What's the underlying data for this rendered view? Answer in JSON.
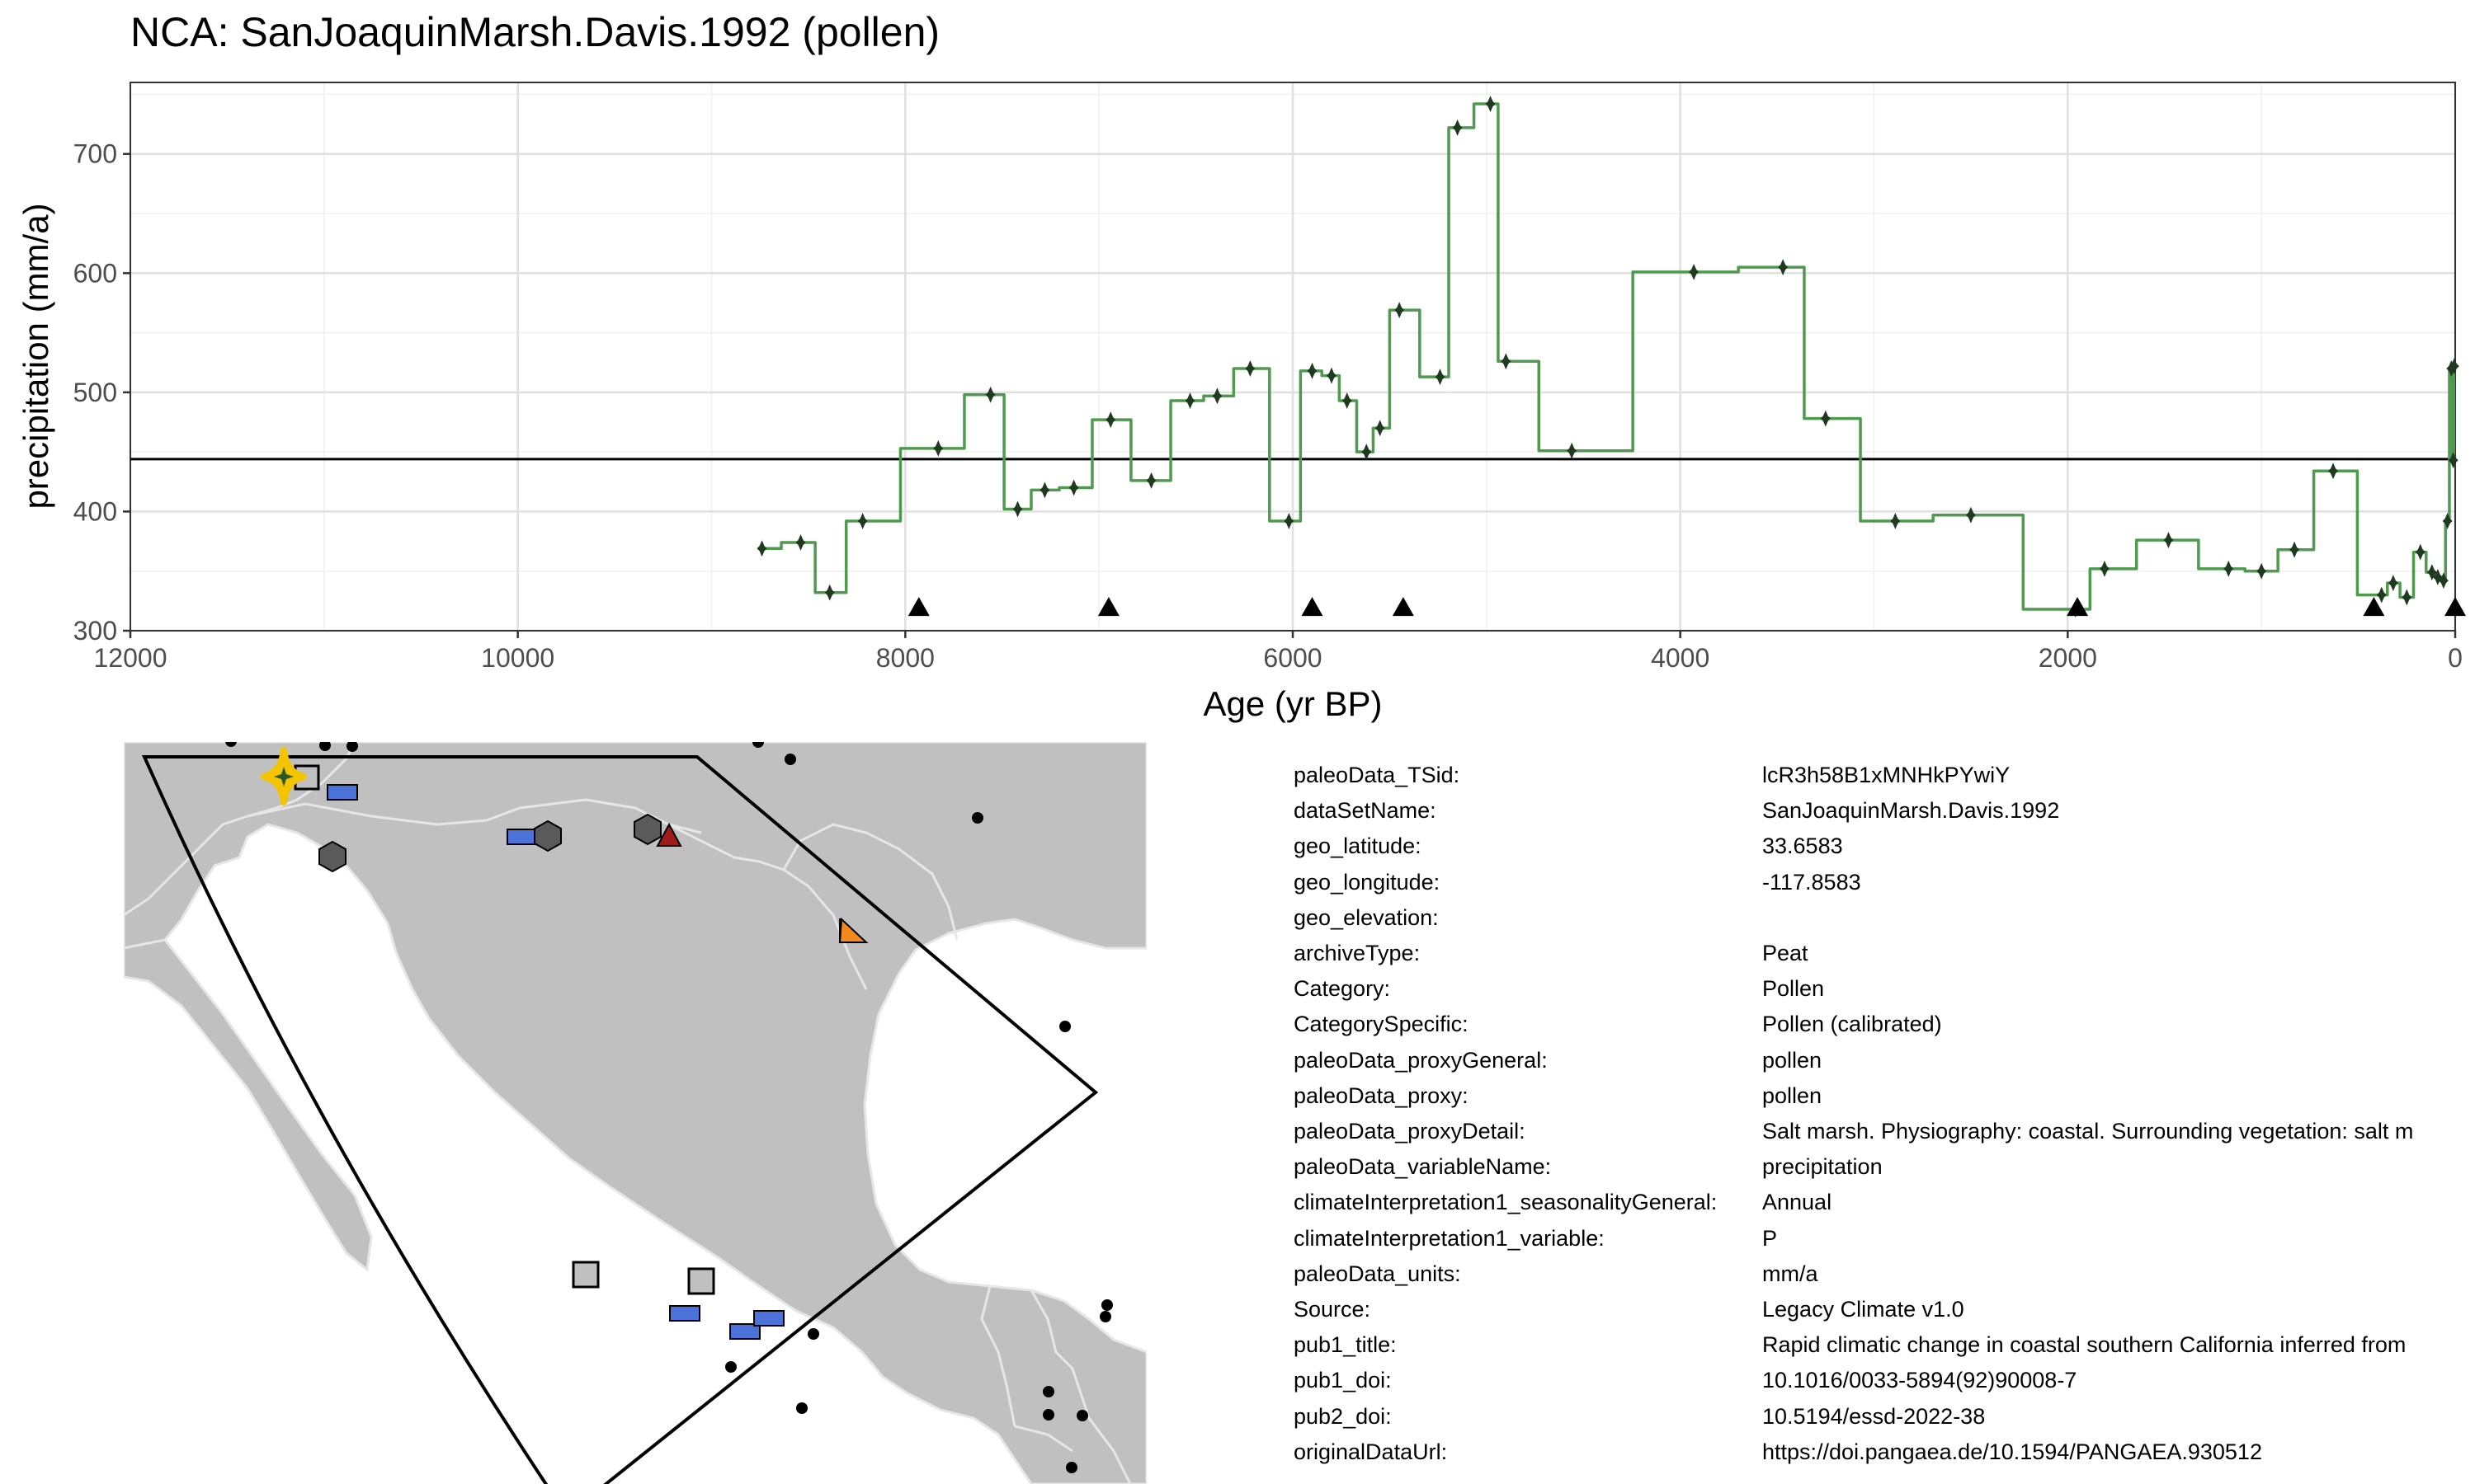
{
  "chart_data": {
    "type": "line",
    "title": "NCA: SanJoaquinMarsh.Davis.1992 (pollen)",
    "xlabel": "Age (yr BP)",
    "ylabel": "precipitation (mm/a)",
    "xlim": [
      12000,
      0
    ],
    "ylim": [
      300,
      760
    ],
    "x_ticks": [
      12000,
      10000,
      8000,
      6000,
      4000,
      2000,
      0
    ],
    "y_ticks": [
      300,
      400,
      500,
      600,
      700
    ],
    "x_tick_labels": [
      "12000",
      "10000",
      "8000",
      "6000",
      "4000",
      "2000",
      "0"
    ],
    "y_tick_labels": [
      "300",
      "400",
      "500",
      "600",
      "700"
    ],
    "reference_line": 444,
    "series": [
      {
        "color": "#4f9a4f",
        "x": [
          8740,
          8540,
          8390,
          8220,
          7830,
          7560,
          7420,
          7280,
          7130,
          6940,
          6730,
          6530,
          6390,
          6220,
          6020,
          5900,
          5800,
          5720,
          5620,
          5550,
          5450,
          5240,
          5150,
          4980,
          4900,
          4560,
          3930,
          3470,
          3250,
          2890,
          2500,
          1960,
          1810,
          1480,
          1170,
          1000,
          830,
          630,
          380,
          320,
          250,
          180,
          120,
          90,
          60,
          40,
          20,
          10,
          5
        ],
        "y": [
          369,
          374,
          332,
          392,
          453,
          498,
          402,
          418,
          420,
          477,
          426,
          493,
          497,
          520,
          392,
          518,
          514,
          493,
          450,
          470,
          569,
          513,
          722,
          742,
          526,
          451,
          601,
          605,
          478,
          392,
          397,
          318,
          352,
          376,
          352,
          350,
          368,
          434,
          330,
          340,
          328,
          366,
          349,
          345,
          342,
          392,
          520,
          443,
          522
        ]
      }
    ],
    "markers": {
      "shape": "triangle",
      "y": 320,
      "x": [
        7930,
        6950,
        5900,
        5430,
        1950,
        420,
        0
      ]
    }
  },
  "map": {
    "land_color": "#c0c0c0",
    "border_color": "#e6e6e6",
    "highlight_color": "#f5c400",
    "legend_colors": {
      "blue": "#4a72d8",
      "orange": "#f28a1e",
      "red": "#a01c1c",
      "gray": "#5a5a5a",
      "open_square": "#c0c0c0"
    }
  },
  "metadata": [
    {
      "key": "paleoData_TSid:",
      "value": "lcR3h58B1xMNHkPYwiY"
    },
    {
      "key": "dataSetName:",
      "value": "SanJoaquinMarsh.Davis.1992"
    },
    {
      "key": "geo_latitude:",
      "value": "33.6583"
    },
    {
      "key": "geo_longitude:",
      "value": "-117.8583"
    },
    {
      "key": "geo_elevation:",
      "value": ""
    },
    {
      "key": "archiveType:",
      "value": "Peat"
    },
    {
      "key": "Category:",
      "value": "Pollen"
    },
    {
      "key": "CategorySpecific:",
      "value": "Pollen (calibrated)"
    },
    {
      "key": "paleoData_proxyGeneral:",
      "value": "pollen"
    },
    {
      "key": "paleoData_proxy:",
      "value": "pollen"
    },
    {
      "key": "paleoData_proxyDetail:",
      "value": "Salt marsh. Physiography: coastal. Surrounding vegetation: salt m"
    },
    {
      "key": "paleoData_variableName:",
      "value": "precipitation"
    },
    {
      "key": "climateInterpretation1_seasonalityGeneral:",
      "value": "Annual"
    },
    {
      "key": "climateInterpretation1_variable:",
      "value": "P"
    },
    {
      "key": "paleoData_units:",
      "value": "mm/a"
    },
    {
      "key": "Source:",
      "value": "Legacy Climate v1.0"
    },
    {
      "key": "pub1_title:",
      "value": "Rapid climatic change in coastal southern California inferred from"
    },
    {
      "key": "pub1_doi:",
      "value": "10.1016/0033-5894(92)90008-7"
    },
    {
      "key": "pub2_doi:",
      "value": "10.5194/essd-2022-38"
    },
    {
      "key": "originalDataUrl:",
      "value": "https://doi.pangaea.de/10.1594/PANGAEA.930512"
    }
  ]
}
